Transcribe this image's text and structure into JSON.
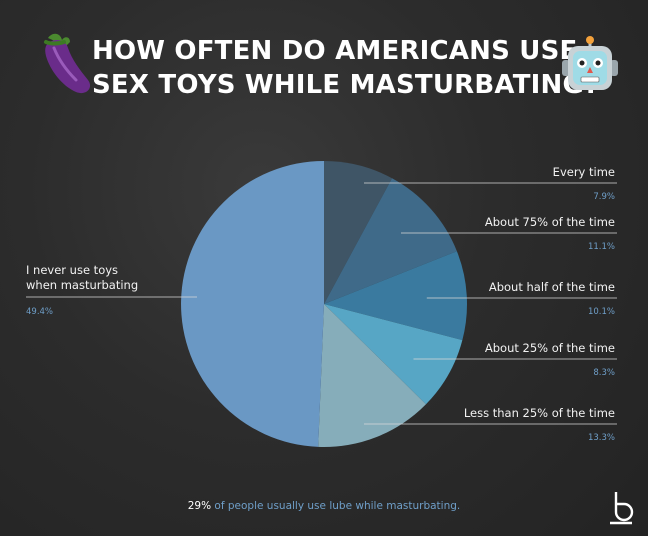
{
  "title_line1": "HOW OFTEN DO AMERICANS USE",
  "title_line2": "SEX TOYS WHILE MASTURBATING?",
  "left_emoji": "eggplant-icon",
  "right_emoji": "robot-icon",
  "chart_data": {
    "type": "pie",
    "title": "HOW OFTEN DO AMERICANS USE SEX TOYS WHILE MASTURBATING?",
    "slices": [
      {
        "label": "Every time",
        "value": 7.9,
        "value_label": "7.9%",
        "color": "#3f5566"
      },
      {
        "label": "About 75% of the time",
        "value": 11.1,
        "value_label": "11.1%",
        "color": "#3f6a89"
      },
      {
        "label": "About half of the time",
        "value": 10.1,
        "value_label": "10.1%",
        "color": "#3a7a9f"
      },
      {
        "label": "About 25% of the time",
        "value": 8.3,
        "value_label": "8.3%",
        "color": "#57a6c5"
      },
      {
        "label": "Less than 25% of the time",
        "value": 13.3,
        "value_label": "13.3%",
        "color": "#86adba"
      },
      {
        "label": "I never use toys when masturbating",
        "label_lines": [
          "I never use toys",
          "when masturbating"
        ],
        "value": 49.4,
        "value_label": "49.4%",
        "color": "#6a98c4"
      }
    ]
  },
  "footnote": {
    "value": "29%",
    "text": " of people usually use lube while masturbating."
  },
  "colors": {
    "background": "#2b2b2b",
    "accent_blue": "#6f9fc9"
  }
}
